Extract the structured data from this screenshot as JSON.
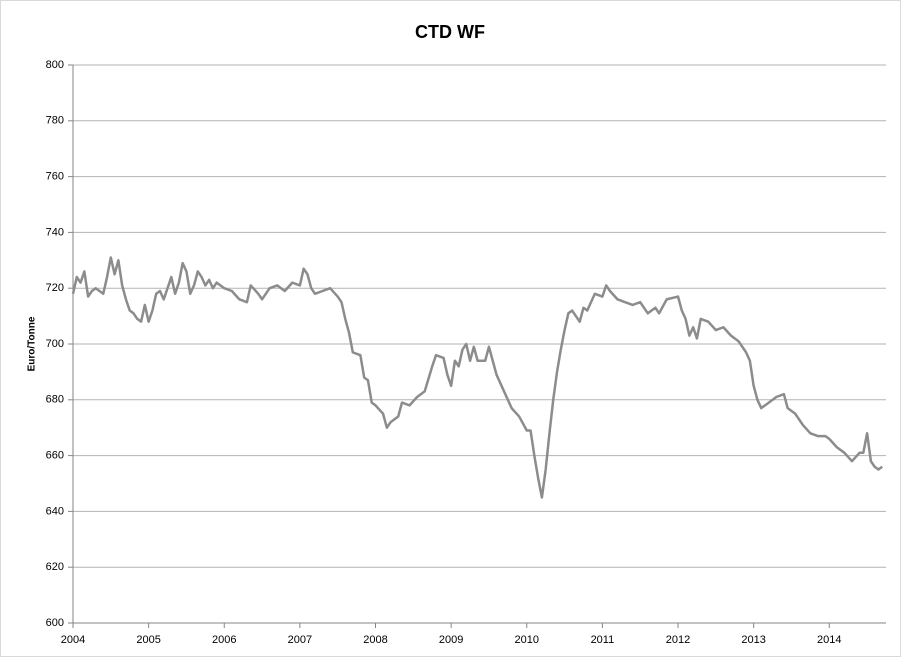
{
  "chart_data": {
    "type": "line",
    "title": "CTD WF",
    "y_label": "Euro/Tonne",
    "xlim": [
      2004,
      2014.75
    ],
    "xticks": [
      2004,
      2005,
      2006,
      2007,
      2008,
      2009,
      2010,
      2011,
      2012,
      2013,
      2014
    ],
    "ylim": [
      600,
      800
    ],
    "yticks": [
      600,
      620,
      640,
      660,
      680,
      700,
      720,
      740,
      760,
      780,
      800
    ],
    "grid": true,
    "x": [
      2004.0,
      2004.05,
      2004.1,
      2004.15,
      2004.2,
      2004.25,
      2004.3,
      2004.35,
      2004.4,
      2004.45,
      2004.5,
      2004.55,
      2004.6,
      2004.65,
      2004.7,
      2004.75,
      2004.8,
      2004.85,
      2004.9,
      2004.95,
      2005.0,
      2005.05,
      2005.1,
      2005.15,
      2005.2,
      2005.25,
      2005.3,
      2005.35,
      2005.4,
      2005.45,
      2005.5,
      2005.55,
      2005.6,
      2005.65,
      2005.7,
      2005.75,
      2005.8,
      2005.85,
      2005.9,
      2006.0,
      2006.1,
      2006.2,
      2006.3,
      2006.35,
      2006.45,
      2006.5,
      2006.6,
      2006.7,
      2006.8,
      2006.9,
      2007.0,
      2007.05,
      2007.1,
      2007.15,
      2007.2,
      2007.3,
      2007.4,
      2007.5,
      2007.55,
      2007.6,
      2007.65,
      2007.7,
      2007.8,
      2007.85,
      2007.9,
      2007.95,
      2008.0,
      2008.1,
      2008.15,
      2008.2,
      2008.3,
      2008.35,
      2008.45,
      2008.55,
      2008.65,
      2008.75,
      2008.8,
      2008.9,
      2008.95,
      2009.0,
      2009.05,
      2009.1,
      2009.15,
      2009.2,
      2009.25,
      2009.3,
      2009.35,
      2009.45,
      2009.5,
      2009.55,
      2009.6,
      2009.7,
      2009.8,
      2009.9,
      2010.0,
      2010.05,
      2010.1,
      2010.15,
      2010.2,
      2010.25,
      2010.3,
      2010.35,
      2010.4,
      2010.45,
      2010.5,
      2010.55,
      2010.6,
      2010.7,
      2010.75,
      2010.8,
      2010.9,
      2011.0,
      2011.05,
      2011.1,
      2011.2,
      2011.3,
      2011.4,
      2011.5,
      2011.6,
      2011.7,
      2011.75,
      2011.85,
      2012.0,
      2012.05,
      2012.1,
      2012.15,
      2012.2,
      2012.25,
      2012.3,
      2012.4,
      2012.5,
      2012.6,
      2012.7,
      2012.8,
      2012.9,
      2012.95,
      2013.0,
      2013.05,
      2013.1,
      2013.2,
      2013.3,
      2013.4,
      2013.45,
      2013.55,
      2013.65,
      2013.75,
      2013.85,
      2013.95,
      2014.0,
      2014.1,
      2014.2,
      2014.3,
      2014.4,
      2014.45,
      2014.5,
      2014.55,
      2014.6,
      2014.65,
      2014.7
    ],
    "series": [
      {
        "name": "CTD WF",
        "color": "#8c8c8c",
        "values": [
          718,
          724,
          722,
          726,
          717,
          719,
          720,
          719,
          718,
          724,
          731,
          725,
          730,
          721,
          716,
          712,
          711,
          709,
          708,
          714,
          708,
          712,
          718,
          719,
          716,
          720,
          724,
          718,
          722,
          729,
          726,
          718,
          721,
          726,
          724,
          721,
          723,
          720,
          722,
          720,
          719,
          716,
          715,
          721,
          718,
          716,
          720,
          721,
          719,
          722,
          721,
          727,
          725,
          720,
          718,
          719,
          720,
          717,
          715,
          709,
          704,
          697,
          696,
          688,
          687,
          679,
          678,
          675,
          670,
          672,
          674,
          679,
          678,
          681,
          683,
          692,
          696,
          695,
          689,
          685,
          694,
          692,
          698,
          700,
          694,
          699,
          694,
          694,
          699,
          694,
          689,
          683,
          677,
          674,
          669,
          669,
          660,
          652,
          645,
          655,
          668,
          680,
          690,
          698,
          705,
          711,
          712,
          708,
          713,
          712,
          718,
          717,
          721,
          719,
          716,
          715,
          714,
          715,
          711,
          713,
          711,
          716,
          717,
          712,
          709,
          703,
          706,
          702,
          709,
          708,
          705,
          706,
          703,
          701,
          697,
          694,
          685,
          680,
          677,
          679,
          681,
          682,
          677,
          675,
          671,
          668,
          667,
          667,
          666,
          663,
          661,
          658,
          661,
          661,
          668,
          658,
          656,
          655,
          656
        ]
      }
    ]
  }
}
